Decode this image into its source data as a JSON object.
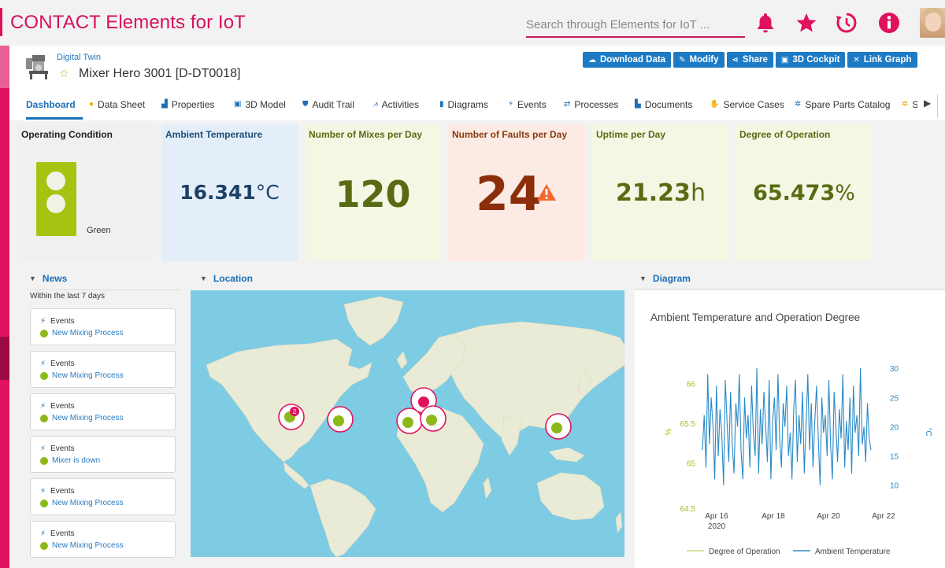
{
  "app": {
    "title": "CONTACT Elements for IoT",
    "search_placeholder": "Search through Elements for IoT ...",
    "icons": [
      "bell-icon",
      "star-icon",
      "history-icon",
      "info-icon"
    ],
    "accent_color": "#d6105f"
  },
  "header": {
    "breadcrumb": "Digital Twin",
    "title": "Mixer Hero 3001 [D-DT0018]",
    "actions": [
      {
        "label": "Download Data",
        "icon": "cloud-download-icon"
      },
      {
        "label": "Modify",
        "icon": "edit-icon"
      },
      {
        "label": "Share",
        "icon": "share-icon"
      },
      {
        "label": "3D Cockpit",
        "icon": "cube-icon"
      },
      {
        "label": "Link Graph",
        "icon": "link-graph-icon"
      }
    ]
  },
  "tabs": [
    {
      "label": "Dashboard",
      "icon": "",
      "active": true
    },
    {
      "label": "Data Sheet",
      "icon": "info-icon"
    },
    {
      "label": "Properties",
      "icon": "properties-icon"
    },
    {
      "label": "3D Model",
      "icon": "cube-icon"
    },
    {
      "label": "Audit Trail",
      "icon": "shield-icon"
    },
    {
      "label": "Activities",
      "icon": "activity-icon"
    },
    {
      "label": "Diagrams",
      "icon": "bar-chart-icon"
    },
    {
      "label": "Events",
      "icon": "bolt-icon"
    },
    {
      "label": "Processes",
      "icon": "process-icon"
    },
    {
      "label": "Documents",
      "icon": "document-icon"
    },
    {
      "label": "Service Cases",
      "icon": "service-icon"
    },
    {
      "label": "Spare Parts Catalog",
      "icon": "gear-icon"
    },
    {
      "label": "S",
      "icon": "gear-icon"
    }
  ],
  "kpis": {
    "condition": {
      "label": "Operating Condition",
      "value": "Green"
    },
    "ambient": {
      "label": "Ambient Temperature",
      "value": "16.341",
      "unit": "°C"
    },
    "mixes": {
      "label": "Number of Mixes per Day",
      "value": "120"
    },
    "faults": {
      "label": "Number of Faults per Day",
      "value": "24"
    },
    "uptime": {
      "label": "Uptime per Day",
      "value": "21.23",
      "unit": "h"
    },
    "degree": {
      "label": "Degree of Operation",
      "value": "65.473",
      "unit": "%"
    }
  },
  "sections": {
    "news": "News",
    "location": "Location",
    "diagram": "Diagram"
  },
  "news": {
    "subtitle": "Within the last 7 days",
    "items": [
      {
        "category": "Events",
        "link": "New Mixing Process"
      },
      {
        "category": "Events",
        "link": "New Mixing Process"
      },
      {
        "category": "Events",
        "link": "New Mixing Process"
      },
      {
        "category": "Events",
        "link": "Mixer is down"
      },
      {
        "category": "Events",
        "link": "New Mixing Process"
      },
      {
        "category": "Events",
        "link": "New Mixing Process"
      }
    ]
  },
  "map": {
    "markers": [
      {
        "badge": "2"
      },
      {
        "badge": ""
      },
      {
        "badge": ""
      },
      {
        "badge": ""
      },
      {
        "badge": ""
      },
      {
        "badge": ""
      }
    ]
  },
  "chart_data": {
    "type": "line",
    "title": "Ambient Temperature and Operation Degree",
    "xlabel": "",
    "x_ticks": [
      "Apr 16\n2020",
      "Apr 18",
      "Apr 20",
      "Apr 22"
    ],
    "y_left": {
      "label": "%",
      "ticks": [
        64.5,
        65,
        65.5,
        66
      ],
      "range": [
        64.5,
        66.3
      ],
      "color": "#a3c21e"
    },
    "y_right": {
      "label": "°C",
      "ticks": [
        10,
        15,
        20,
        25,
        30
      ],
      "range": [
        7,
        31.5
      ],
      "color": "#2a8ac6"
    },
    "series": [
      {
        "name": "Degree of Operation",
        "axis": "left",
        "color": "#c7dc7a",
        "values": []
      },
      {
        "name": "Ambient Temperature",
        "axis": "right",
        "color": "#2a8ac6",
        "values": [
          16,
          22,
          13,
          29,
          17,
          25,
          20,
          11,
          27,
          15,
          23,
          19,
          10,
          28,
          21,
          14,
          26,
          17,
          12,
          24,
          20,
          29,
          16,
          11,
          25,
          18,
          22,
          13,
          27,
          19,
          15,
          30,
          12,
          23,
          17,
          26,
          20,
          14,
          28,
          11,
          21,
          25,
          16,
          29,
          18,
          13,
          24,
          20,
          27,
          15,
          19,
          11,
          23,
          28,
          14,
          22,
          17,
          26,
          12,
          20,
          29,
          16,
          24,
          13,
          21,
          27,
          18,
          10,
          25,
          19,
          22,
          15,
          28,
          17,
          11,
          26,
          20,
          14,
          23,
          18,
          29,
          13,
          21,
          16,
          25,
          12,
          27,
          19,
          22,
          15,
          30,
          17,
          20,
          14,
          24,
          18,
          16
        ]
      }
    ],
    "legend_position": "bottom"
  }
}
